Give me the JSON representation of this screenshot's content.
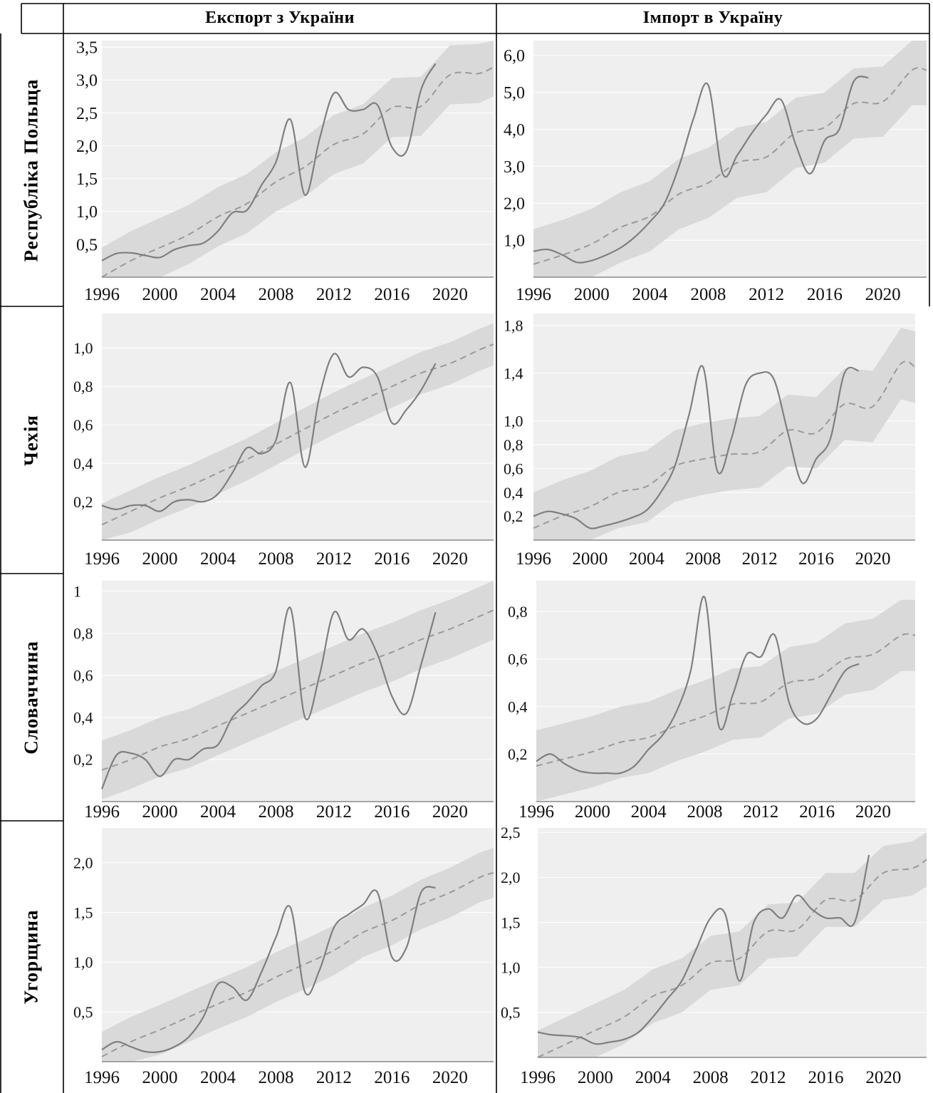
{
  "header": {
    "export_label": "Експорт з України",
    "import_label": "Імпорт в Україну"
  },
  "rows": [
    {
      "country": "Республіка Польща"
    },
    {
      "country": "Чехія"
    },
    {
      "country": "Словаччина"
    },
    {
      "country": "Угорщина"
    }
  ],
  "colors": {
    "band": "#d9d9d9",
    "bg": "#efefef",
    "line": "#7f7f7f",
    "trend": "#9a9a9a",
    "axis": "#8a8a8a"
  },
  "chart_data": [
    {
      "type": "line",
      "country": "Республіка Польща",
      "flow": "Експорт з України",
      "xlim": [
        1996,
        2023
      ],
      "ylim": [
        0,
        3.6
      ],
      "x_ticks": [
        "1996",
        "2000",
        "2004",
        "2008",
        "2012",
        "2016",
        "2020"
      ],
      "y_ticks": [
        {
          "label": "0,5",
          "value": 0.5
        },
        {
          "label": "1,0",
          "value": 1.0
        },
        {
          "label": "1,5",
          "value": 1.5
        },
        {
          "label": "2,0",
          "value": 2.0
        },
        {
          "label": "2,5",
          "value": 2.5
        },
        {
          "label": "3,0",
          "value": 3.0
        },
        {
          "label": "3,5",
          "value": 3.5
        }
      ],
      "actual": {
        "x": [
          1996,
          1997,
          1998,
          1999,
          2000,
          2001,
          2002,
          2003,
          2004,
          2005,
          2006,
          2007,
          2008,
          2009,
          2010,
          2011,
          2012,
          2013,
          2014,
          2015,
          2016,
          2017,
          2018,
          2019
        ],
        "y": [
          0.25,
          0.36,
          0.37,
          0.33,
          0.3,
          0.42,
          0.48,
          0.52,
          0.7,
          0.98,
          1.02,
          1.4,
          1.75,
          2.4,
          1.25,
          2.1,
          2.8,
          2.55,
          2.55,
          2.62,
          1.98,
          1.92,
          2.85,
          3.25
        ]
      },
      "forecast": {
        "x": [
          1996,
          1998,
          2000,
          2002,
          2004,
          2006,
          2008,
          2010,
          2012,
          2014,
          2016,
          2018,
          2020,
          2022,
          2023
        ],
        "y": [
          0.0,
          0.25,
          0.45,
          0.65,
          0.92,
          1.12,
          1.45,
          1.68,
          2.02,
          2.18,
          2.58,
          2.6,
          3.08,
          3.1,
          3.2
        ]
      },
      "band_halfwidth": 0.45
    },
    {
      "type": "line",
      "country": "Республіка Польща",
      "flow": "Імпорт в Україну",
      "xlim": [
        1996,
        2023
      ],
      "ylim": [
        0,
        6.4
      ],
      "x_ticks": [
        "1996",
        "2000",
        "2004",
        "2008",
        "2012",
        "2016",
        "2020"
      ],
      "y_ticks": [
        {
          "label": "1,0",
          "value": 1.0
        },
        {
          "label": "2,0",
          "value": 2.0
        },
        {
          "label": "3,0",
          "value": 3.0
        },
        {
          "label": "4,0",
          "value": 4.0
        },
        {
          "label": "5,0",
          "value": 5.0
        },
        {
          "label": "6,0",
          "value": 6.0
        }
      ],
      "actual": {
        "x": [
          1996,
          1997,
          1998,
          1999,
          2000,
          2001,
          2002,
          2003,
          2004,
          2005,
          2006,
          2007,
          2008,
          2009,
          2010,
          2011,
          2012,
          2013,
          2014,
          2015,
          2016,
          2017,
          2018,
          2019
        ],
        "y": [
          0.7,
          0.75,
          0.6,
          0.4,
          0.45,
          0.6,
          0.8,
          1.1,
          1.5,
          2.0,
          3.0,
          4.3,
          5.2,
          2.8,
          3.3,
          3.9,
          4.4,
          4.8,
          3.6,
          2.8,
          3.7,
          4.0,
          5.3,
          5.4
        ]
      },
      "forecast": {
        "x": [
          1996,
          1998,
          2000,
          2002,
          2004,
          2006,
          2008,
          2010,
          2012,
          2014,
          2016,
          2018,
          2020,
          2022,
          2023
        ],
        "y": [
          0.35,
          0.6,
          0.9,
          1.35,
          1.65,
          2.25,
          2.55,
          3.1,
          3.25,
          3.9,
          4.05,
          4.7,
          4.75,
          5.6,
          5.6
        ]
      },
      "band_halfwidth": 0.95
    },
    {
      "type": "line",
      "country": "Чехія",
      "flow": "Експорт з України",
      "xlim": [
        1996,
        2023
      ],
      "ylim": [
        0,
        1.18
      ],
      "x_ticks": [
        "1996",
        "2000",
        "2004",
        "2008",
        "2012",
        "2016",
        "2020"
      ],
      "y_ticks": [
        {
          "label": "0,2",
          "value": 0.2
        },
        {
          "label": "0,4",
          "value": 0.4
        },
        {
          "label": "0,6",
          "value": 0.6
        },
        {
          "label": "0,8",
          "value": 0.8
        },
        {
          "label": "1,0",
          "value": 1.0
        }
      ],
      "actual": {
        "x": [
          1996,
          1997,
          1998,
          1999,
          2000,
          2001,
          2002,
          2003,
          2004,
          2005,
          2006,
          2007,
          2008,
          2009,
          2010,
          2011,
          2012,
          2013,
          2014,
          2015,
          2016,
          2017,
          2018,
          2019
        ],
        "y": [
          0.18,
          0.16,
          0.18,
          0.18,
          0.15,
          0.2,
          0.21,
          0.2,
          0.24,
          0.35,
          0.48,
          0.45,
          0.52,
          0.82,
          0.38,
          0.75,
          0.97,
          0.85,
          0.9,
          0.85,
          0.61,
          0.68,
          0.78,
          0.92
        ]
      },
      "forecast": {
        "x": [
          1996,
          1998,
          2000,
          2002,
          2004,
          2006,
          2008,
          2010,
          2012,
          2014,
          2016,
          2018,
          2020,
          2022,
          2023
        ],
        "y": [
          0.08,
          0.15,
          0.22,
          0.28,
          0.35,
          0.42,
          0.5,
          0.58,
          0.66,
          0.73,
          0.8,
          0.87,
          0.92,
          0.99,
          1.02
        ]
      },
      "band_halfwidth": 0.11
    },
    {
      "type": "line",
      "country": "Чехія",
      "flow": "Імпорт в Україну",
      "xlim": [
        1996,
        2023
      ],
      "ylim": [
        0,
        1.9
      ],
      "x_ticks": [
        "1996",
        "2000",
        "2004",
        "2008",
        "2012",
        "2016",
        "2020"
      ],
      "y_ticks": [
        {
          "label": "0,2",
          "value": 0.2
        },
        {
          "label": "0,4",
          "value": 0.4
        },
        {
          "label": "0,6",
          "value": 0.6
        },
        {
          "label": "0,8",
          "value": 0.8
        },
        {
          "label": "1,0",
          "value": 1.0
        },
        {
          "label": "1,4",
          "value": 1.4
        },
        {
          "label": "1,8",
          "value": 1.8
        }
      ],
      "actual": {
        "x": [
          1996,
          1997,
          1998,
          1999,
          2000,
          2001,
          2002,
          2003,
          2004,
          2005,
          2006,
          2007,
          2008,
          2009,
          2010,
          2011,
          2012,
          2013,
          2014,
          2015,
          2016,
          2017,
          2018,
          2019
        ],
        "y": [
          0.2,
          0.24,
          0.22,
          0.18,
          0.1,
          0.12,
          0.15,
          0.19,
          0.25,
          0.4,
          0.62,
          1.05,
          1.45,
          0.58,
          0.85,
          1.3,
          1.4,
          1.35,
          0.9,
          0.48,
          0.68,
          0.85,
          1.4,
          1.42
        ]
      },
      "forecast": {
        "x": [
          1996,
          1998,
          2000,
          2002,
          2004,
          2006,
          2008,
          2010,
          2012,
          2014,
          2016,
          2018,
          2020,
          2022,
          2023
        ],
        "y": [
          0.1,
          0.2,
          0.28,
          0.4,
          0.45,
          0.62,
          0.68,
          0.72,
          0.74,
          0.92,
          0.9,
          1.14,
          1.12,
          1.48,
          1.45
        ]
      },
      "band_halfwidth": 0.3
    },
    {
      "type": "line",
      "country": "Словаччина",
      "flow": "Експорт з України",
      "xlim": [
        1996,
        2023
      ],
      "ylim": [
        0,
        1.05
      ],
      "x_ticks": [
        "1996",
        "2000",
        "2004",
        "2008",
        "2012",
        "2016",
        "2020"
      ],
      "y_ticks": [
        {
          "label": "0,2",
          "value": 0.2
        },
        {
          "label": "0,4",
          "value": 0.4
        },
        {
          "label": "0,6",
          "value": 0.6
        },
        {
          "label": "0,8",
          "value": 0.8
        },
        {
          "label": "1",
          "value": 1.0
        }
      ],
      "actual": {
        "x": [
          1996,
          1997,
          1998,
          1999,
          2000,
          2001,
          2002,
          2003,
          2004,
          2005,
          2006,
          2007,
          2008,
          2009,
          2010,
          2011,
          2012,
          2013,
          2014,
          2015,
          2016,
          2017,
          2018,
          2019
        ],
        "y": [
          0.06,
          0.22,
          0.23,
          0.2,
          0.12,
          0.2,
          0.2,
          0.25,
          0.27,
          0.4,
          0.47,
          0.55,
          0.62,
          0.92,
          0.4,
          0.6,
          0.9,
          0.77,
          0.82,
          0.7,
          0.5,
          0.42,
          0.65,
          0.9
        ]
      },
      "forecast": {
        "x": [
          1996,
          1998,
          2000,
          2002,
          2004,
          2006,
          2008,
          2010,
          2012,
          2014,
          2016,
          2018,
          2020,
          2022,
          2023
        ],
        "y": [
          0.15,
          0.2,
          0.26,
          0.3,
          0.36,
          0.42,
          0.48,
          0.54,
          0.6,
          0.66,
          0.71,
          0.77,
          0.82,
          0.88,
          0.91
        ]
      },
      "band_halfwidth": 0.14
    },
    {
      "type": "line",
      "country": "Словаччина",
      "flow": "Імпорт в Україну",
      "xlim": [
        1996,
        2023
      ],
      "ylim": [
        0,
        0.93
      ],
      "x_ticks": [
        "1996",
        "2000",
        "2004",
        "2008",
        "2012",
        "2016",
        "2020"
      ],
      "y_ticks": [
        {
          "label": "0,2",
          "value": 0.2
        },
        {
          "label": "0,4",
          "value": 0.4
        },
        {
          "label": "0,6",
          "value": 0.6
        },
        {
          "label": "0,8",
          "value": 0.8
        }
      ],
      "actual": {
        "x": [
          1996,
          1997,
          1998,
          1999,
          2000,
          2001,
          2002,
          2003,
          2004,
          2005,
          2006,
          2007,
          2008,
          2009,
          2010,
          2011,
          2012,
          2013,
          2014,
          2015,
          2016,
          2017,
          2018,
          2019
        ],
        "y": [
          0.17,
          0.2,
          0.16,
          0.13,
          0.12,
          0.12,
          0.12,
          0.15,
          0.22,
          0.28,
          0.38,
          0.55,
          0.86,
          0.32,
          0.45,
          0.62,
          0.61,
          0.7,
          0.42,
          0.33,
          0.35,
          0.45,
          0.55,
          0.58
        ]
      },
      "forecast": {
        "x": [
          1996,
          1998,
          2000,
          2002,
          2004,
          2006,
          2008,
          2010,
          2012,
          2014,
          2016,
          2018,
          2020,
          2022,
          2023
        ],
        "y": [
          0.15,
          0.18,
          0.21,
          0.25,
          0.27,
          0.32,
          0.36,
          0.41,
          0.42,
          0.5,
          0.52,
          0.6,
          0.62,
          0.7,
          0.7
        ]
      },
      "band_halfwidth": 0.15
    },
    {
      "type": "line",
      "country": "Угорщина",
      "flow": "Експорт з України",
      "xlim": [
        1996,
        2023
      ],
      "ylim": [
        0,
        2.35
      ],
      "x_ticks": [
        "1996",
        "2000",
        "2004",
        "2008",
        "2012",
        "2016",
        "2020"
      ],
      "y_ticks": [
        {
          "label": "0,5",
          "value": 0.5
        },
        {
          "label": "1,0",
          "value": 1.0
        },
        {
          "label": "1,5",
          "value": 1.5
        },
        {
          "label": "2,0",
          "value": 2.0
        }
      ],
      "actual": {
        "x": [
          1996,
          1997,
          1998,
          1999,
          2000,
          2001,
          2002,
          2003,
          2004,
          2005,
          2006,
          2007,
          2008,
          2009,
          2010,
          2011,
          2012,
          2013,
          2014,
          2015,
          2016,
          2017,
          2018,
          2019
        ],
        "y": [
          0.12,
          0.2,
          0.15,
          0.1,
          0.1,
          0.15,
          0.25,
          0.45,
          0.78,
          0.75,
          0.62,
          0.9,
          1.25,
          1.55,
          0.7,
          0.92,
          1.35,
          1.48,
          1.58,
          1.7,
          1.05,
          1.15,
          1.7,
          1.75
        ]
      },
      "forecast": {
        "x": [
          1996,
          1998,
          2000,
          2002,
          2004,
          2006,
          2008,
          2010,
          2012,
          2014,
          2016,
          2018,
          2020,
          2022,
          2023
        ],
        "y": [
          0.05,
          0.2,
          0.32,
          0.45,
          0.58,
          0.7,
          0.85,
          0.98,
          1.12,
          1.3,
          1.42,
          1.58,
          1.7,
          1.85,
          1.9
        ]
      },
      "band_halfwidth": 0.25
    },
    {
      "type": "line",
      "country": "Угорщина",
      "flow": "Імпорт в Україну",
      "xlim": [
        1996,
        2023
      ],
      "ylim": [
        0,
        2.55
      ],
      "x_ticks": [
        "1996",
        "2000",
        "2004",
        "2008",
        "2012",
        "2016",
        "2020"
      ],
      "y_ticks": [
        {
          "label": "0,5",
          "value": 0.5
        },
        {
          "label": "1,0",
          "value": 1.0
        },
        {
          "label": "1,5",
          "value": 1.5
        },
        {
          "label": "2,0",
          "value": 2.0
        },
        {
          "label": "2,5",
          "value": 2.5
        }
      ],
      "actual": {
        "x": [
          1996,
          1997,
          1998,
          1999,
          2000,
          2001,
          2002,
          2003,
          2004,
          2005,
          2006,
          2007,
          2008,
          2009,
          2010,
          2011,
          2012,
          2013,
          2014,
          2015,
          2016,
          2017,
          2018,
          2019
        ],
        "y": [
          0.28,
          0.25,
          0.24,
          0.22,
          0.15,
          0.17,
          0.2,
          0.28,
          0.45,
          0.65,
          0.85,
          1.2,
          1.55,
          1.6,
          0.85,
          1.5,
          1.65,
          1.55,
          1.8,
          1.65,
          1.55,
          1.55,
          1.5,
          2.25
        ]
      },
      "forecast": {
        "x": [
          1996,
          1998,
          2000,
          2002,
          2004,
          2006,
          2008,
          2010,
          2012,
          2014,
          2016,
          2018,
          2020,
          2022,
          2023
        ],
        "y": [
          0.0,
          0.15,
          0.3,
          0.45,
          0.68,
          0.8,
          1.05,
          1.1,
          1.4,
          1.42,
          1.75,
          1.75,
          2.05,
          2.1,
          2.2
        ]
      },
      "band_halfwidth": 0.3
    }
  ]
}
